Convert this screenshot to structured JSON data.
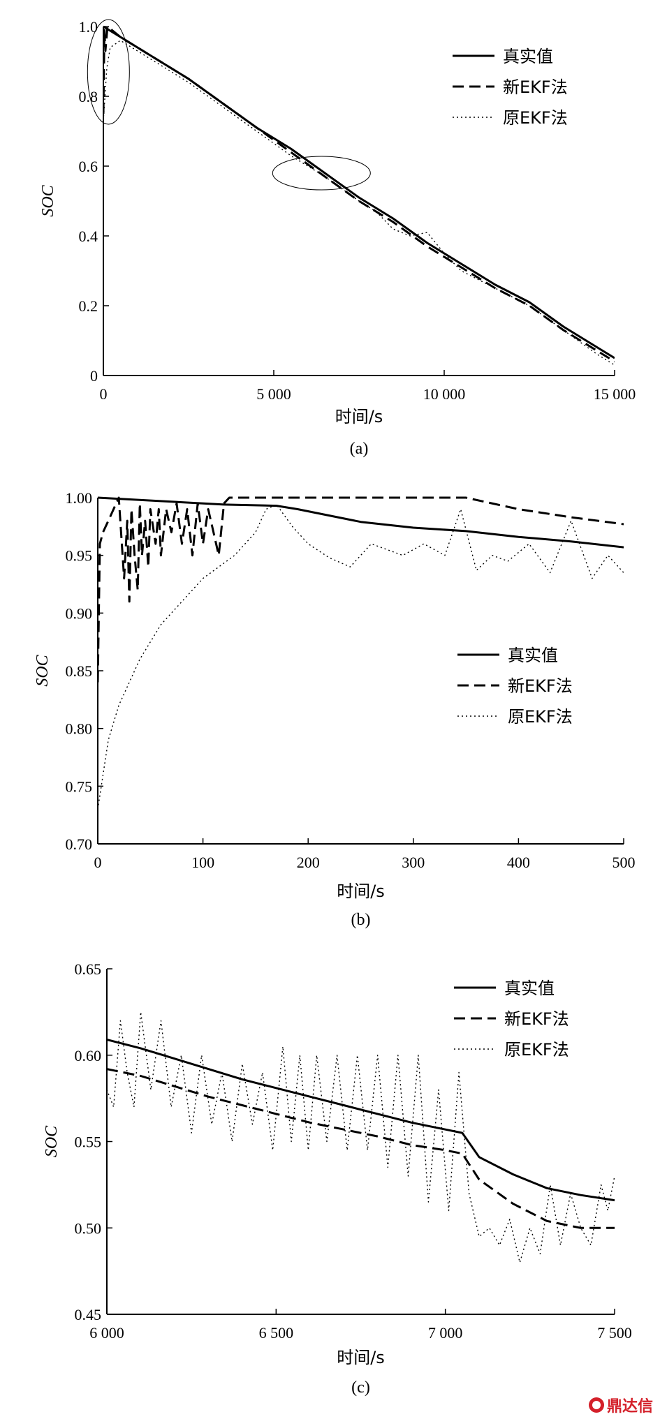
{
  "chart_data": [
    {
      "type": "line",
      "caption": "(a)",
      "xlabel": "时间/s",
      "ylabel": "SOC",
      "xlim": [
        0,
        15000
      ],
      "ylim": [
        0,
        1.0
      ],
      "xticks": [
        0,
        5000,
        10000,
        15000
      ],
      "xtick_labels": [
        "0",
        "5 000",
        "10 000",
        "15 000"
      ],
      "yticks": [
        0,
        0.2,
        0.4,
        0.6,
        0.8,
        1.0
      ],
      "ytick_labels": [
        "0",
        "0.2",
        "0.4",
        "0.6",
        "0.8",
        "1.0"
      ],
      "grid": false,
      "legend": "top-right",
      "series": [
        {
          "name": "真实值",
          "style": "solid",
          "x": [
            0,
            500,
            1500,
            2500,
            3500,
            4500,
            5500,
            6500,
            7500,
            8500,
            9500,
            10500,
            11500,
            12500,
            13500,
            14500,
            15000
          ],
          "y": [
            1.0,
            0.97,
            0.91,
            0.85,
            0.78,
            0.71,
            0.65,
            0.58,
            0.51,
            0.45,
            0.38,
            0.32,
            0.26,
            0.21,
            0.14,
            0.08,
            0.05
          ]
        },
        {
          "name": "新EKF法",
          "style": "dashed",
          "x": [
            0,
            30,
            60,
            120,
            500,
            1500,
            2500,
            3500,
            4500,
            5500,
            6500,
            7500,
            8500,
            9500,
            10500,
            11500,
            12500,
            13500,
            14500,
            15000
          ],
          "y": [
            0.75,
            0.99,
            0.93,
            1.0,
            0.97,
            0.91,
            0.85,
            0.78,
            0.71,
            0.64,
            0.57,
            0.5,
            0.44,
            0.37,
            0.31,
            0.25,
            0.2,
            0.13,
            0.07,
            0.04
          ]
        },
        {
          "name": "原EKF法",
          "style": "dotted",
          "x": [
            0,
            100,
            200,
            500,
            1500,
            2500,
            3500,
            4500,
            5500,
            6500,
            7500,
            8000,
            8500,
            9000,
            9500,
            10000,
            10500,
            11500,
            12500,
            13500,
            14500,
            15000
          ],
          "y": [
            0.73,
            0.88,
            0.94,
            0.96,
            0.9,
            0.84,
            0.77,
            0.7,
            0.63,
            0.57,
            0.5,
            0.47,
            0.42,
            0.4,
            0.41,
            0.35,
            0.3,
            0.25,
            0.2,
            0.13,
            0.06,
            0.03
          ]
        }
      ]
    },
    {
      "type": "line",
      "caption": "(b)",
      "xlabel": "时间/s",
      "ylabel": "SOC",
      "xlim": [
        0,
        500
      ],
      "ylim": [
        0.7,
        1.0
      ],
      "xticks": [
        0,
        100,
        200,
        300,
        400,
        500
      ],
      "xtick_labels": [
        "0",
        "100",
        "200",
        "300",
        "400",
        "500"
      ],
      "yticks": [
        0.7,
        0.75,
        0.8,
        0.85,
        0.9,
        0.95,
        1.0
      ],
      "ytick_labels": [
        "0.70",
        "0.75",
        "0.80",
        "0.85",
        "0.90",
        "0.95",
        "1.00"
      ],
      "grid": false,
      "legend": "center-right",
      "series": [
        {
          "name": "真实值",
          "style": "solid",
          "x": [
            0,
            120,
            170,
            190,
            250,
            300,
            350,
            400,
            450,
            500
          ],
          "y": [
            1.0,
            0.994,
            0.993,
            0.99,
            0.979,
            0.974,
            0.971,
            0.966,
            0.962,
            0.957
          ]
        },
        {
          "name": "新EKF法",
          "style": "dashed",
          "x": [
            0,
            2,
            5,
            10,
            20,
            25,
            28,
            30,
            32,
            35,
            38,
            40,
            42,
            45,
            48,
            50,
            55,
            58,
            60,
            65,
            70,
            75,
            80,
            85,
            90,
            95,
            100,
            105,
            110,
            115,
            120,
            125,
            350,
            400,
            450,
            500
          ],
          "y": [
            0.84,
            0.96,
            0.97,
            0.98,
            1.0,
            0.93,
            0.98,
            0.91,
            0.99,
            0.95,
            0.92,
            0.995,
            0.95,
            0.98,
            0.94,
            0.99,
            0.96,
            0.99,
            0.95,
            0.99,
            0.97,
            0.995,
            0.96,
            0.99,
            0.95,
            0.995,
            0.96,
            0.99,
            0.97,
            0.95,
            0.995,
            1.0,
            1.0,
            0.99,
            0.983,
            0.977
          ]
        },
        {
          "name": "原EKF法",
          "style": "dotted",
          "x": [
            0,
            10,
            20,
            40,
            60,
            80,
            100,
            130,
            150,
            160,
            170,
            185,
            200,
            220,
            240,
            260,
            275,
            290,
            310,
            330,
            345,
            360,
            375,
            390,
            410,
            430,
            450,
            470,
            485,
            500
          ],
          "y": [
            0.73,
            0.79,
            0.82,
            0.86,
            0.89,
            0.91,
            0.93,
            0.95,
            0.97,
            0.99,
            0.994,
            0.975,
            0.96,
            0.948,
            0.94,
            0.96,
            0.955,
            0.95,
            0.96,
            0.95,
            0.99,
            0.937,
            0.95,
            0.945,
            0.96,
            0.935,
            0.98,
            0.93,
            0.95,
            0.935
          ]
        }
      ]
    },
    {
      "type": "line",
      "caption": "(c)",
      "xlabel": "时间/s",
      "ylabel": "SOC",
      "xlim": [
        6000,
        7500
      ],
      "ylim": [
        0.45,
        0.65
      ],
      "xticks": [
        6000,
        6500,
        7000,
        7500
      ],
      "xtick_labels": [
        "6 000",
        "6 500",
        "7 000",
        "7 500"
      ],
      "yticks": [
        0.45,
        0.5,
        0.55,
        0.6,
        0.65
      ],
      "ytick_labels": [
        "0.45",
        "0.50",
        "0.55",
        "0.60",
        "0.65"
      ],
      "grid": false,
      "legend": "top-right",
      "series": [
        {
          "name": "真实值",
          "style": "solid",
          "x": [
            6000,
            6100,
            6200,
            6300,
            6400,
            6500,
            6600,
            6700,
            6800,
            6900,
            7000,
            7050,
            7100,
            7200,
            7300,
            7400,
            7500
          ],
          "y": [
            0.609,
            0.604,
            0.598,
            0.592,
            0.586,
            0.581,
            0.576,
            0.571,
            0.566,
            0.561,
            0.557,
            0.555,
            0.541,
            0.531,
            0.523,
            0.519,
            0.516
          ]
        },
        {
          "name": "新EKF法",
          "style": "dashed",
          "x": [
            6000,
            6100,
            6200,
            6300,
            6400,
            6500,
            6600,
            6700,
            6800,
            6900,
            7000,
            7050,
            7100,
            7200,
            7300,
            7400,
            7500
          ],
          "y": [
            0.592,
            0.588,
            0.582,
            0.576,
            0.571,
            0.566,
            0.561,
            0.557,
            0.553,
            0.548,
            0.545,
            0.543,
            0.528,
            0.514,
            0.504,
            0.5,
            0.5
          ]
        },
        {
          "name": "原EKF法",
          "style": "dotted",
          "x": [
            6000,
            6020,
            6040,
            6060,
            6080,
            6100,
            6130,
            6160,
            6190,
            6220,
            6250,
            6280,
            6310,
            6340,
            6370,
            6400,
            6430,
            6460,
            6490,
            6520,
            6545,
            6570,
            6595,
            6620,
            6650,
            6680,
            6710,
            6740,
            6770,
            6800,
            6830,
            6860,
            6890,
            6920,
            6950,
            6980,
            7010,
            7040,
            7070,
            7100,
            7130,
            7160,
            7190,
            7220,
            7250,
            7280,
            7310,
            7340,
            7370,
            7400,
            7430,
            7460,
            7480,
            7500
          ],
          "y": [
            0.58,
            0.57,
            0.62,
            0.59,
            0.57,
            0.625,
            0.58,
            0.62,
            0.57,
            0.6,
            0.555,
            0.6,
            0.56,
            0.59,
            0.55,
            0.595,
            0.56,
            0.59,
            0.545,
            0.605,
            0.55,
            0.6,
            0.545,
            0.6,
            0.55,
            0.6,
            0.545,
            0.6,
            0.545,
            0.6,
            0.535,
            0.6,
            0.53,
            0.6,
            0.515,
            0.58,
            0.51,
            0.59,
            0.52,
            0.495,
            0.5,
            0.49,
            0.505,
            0.48,
            0.5,
            0.485,
            0.525,
            0.49,
            0.52,
            0.5,
            0.49,
            0.525,
            0.51,
            0.53
          ]
        }
      ]
    }
  ],
  "annotations": [
    "ellipse-a-start",
    "ellipse-a-mid"
  ],
  "watermark": "鼎达信"
}
